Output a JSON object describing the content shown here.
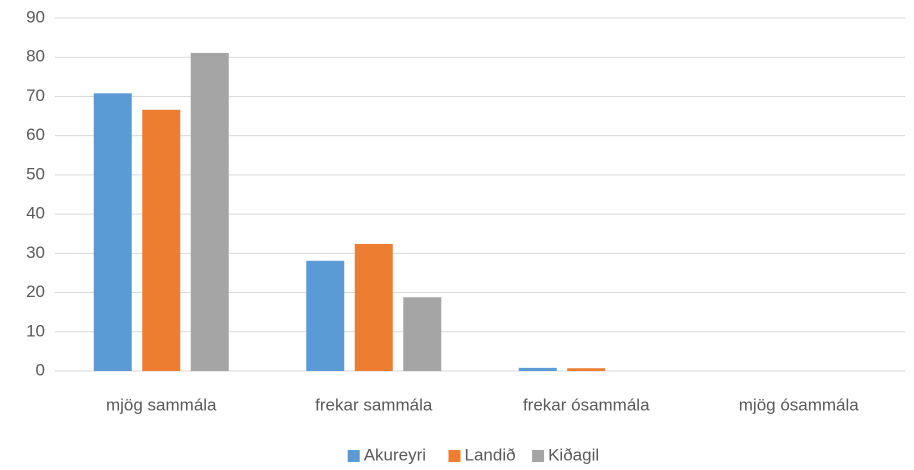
{
  "chart_data": {
    "type": "bar",
    "categories": [
      "mjög sammála",
      "frekar sammála",
      "frekar ósammála",
      "mjög ósammála"
    ],
    "series": [
      {
        "name": "Akureyri",
        "color": "#5b9bd5",
        "values": [
          70.8,
          28.1,
          0.8,
          0
        ]
      },
      {
        "name": "Landið",
        "color": "#ed7d31",
        "values": [
          66.6,
          32.4,
          0.7,
          0
        ]
      },
      {
        "name": "Kiðagil",
        "color": "#a5a5a5",
        "values": [
          81.1,
          18.8,
          0,
          0
        ]
      }
    ],
    "ylim": [
      0,
      90
    ],
    "yticks": [
      0,
      10,
      20,
      30,
      40,
      50,
      60,
      70,
      80,
      90
    ],
    "grid": true,
    "legend": "bottom"
  }
}
